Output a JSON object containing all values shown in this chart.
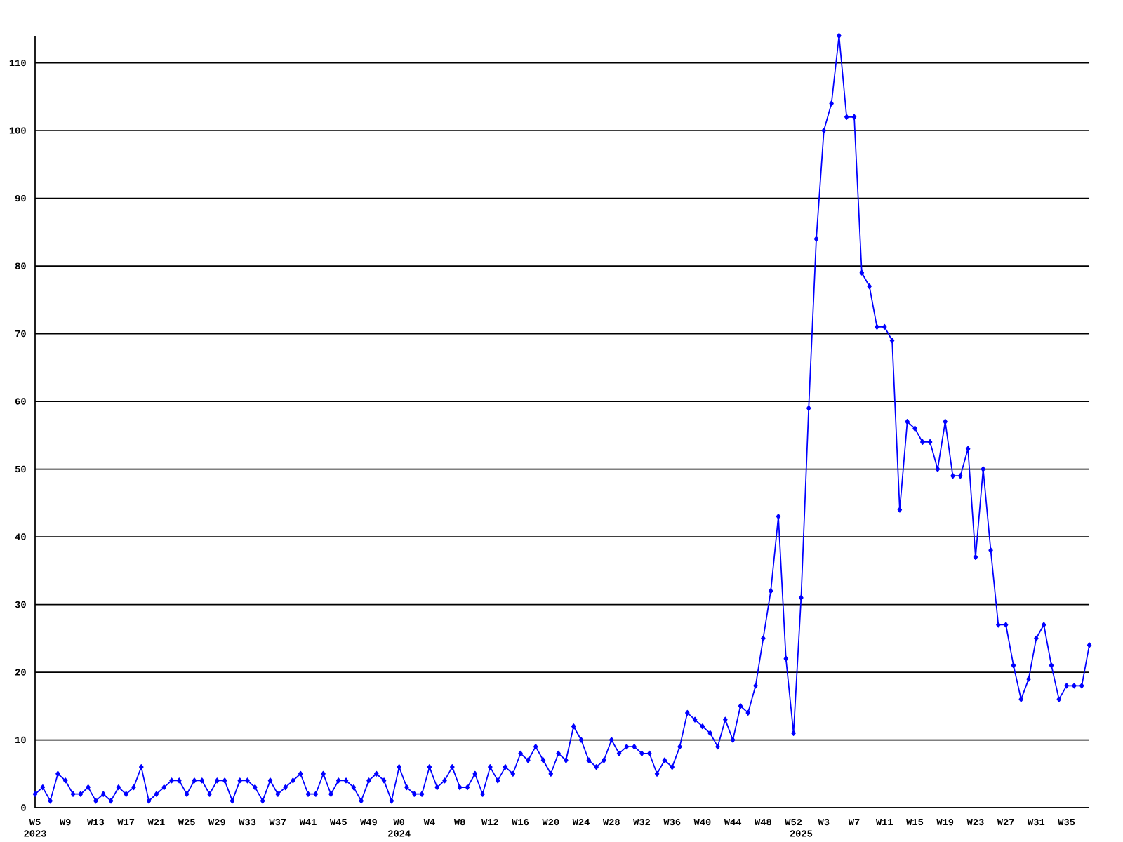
{
  "chart_data": {
    "type": "line",
    "categories": [
      "W5",
      null,
      null,
      null,
      "W9",
      null,
      null,
      null,
      "W13",
      null,
      null,
      null,
      "W17",
      null,
      null,
      null,
      "W21",
      null,
      null,
      null,
      "W25",
      null,
      null,
      null,
      "W29",
      null,
      null,
      null,
      "W33",
      null,
      null,
      null,
      "W37",
      null,
      null,
      null,
      "W41",
      null,
      null,
      null,
      "W45",
      null,
      null,
      null,
      "W49",
      null,
      null,
      null,
      "W0",
      null,
      null,
      null,
      "W4",
      null,
      null,
      null,
      "W8",
      null,
      null,
      null,
      "W12",
      null,
      null,
      null,
      "W16",
      null,
      null,
      null,
      "W20",
      null,
      null,
      null,
      "W24",
      null,
      null,
      null,
      "W28",
      null,
      null,
      null,
      "W32",
      null,
      null,
      null,
      "W36",
      null,
      null,
      null,
      "W40",
      null,
      null,
      null,
      "W44",
      null,
      null,
      null,
      "W48",
      null,
      null,
      null,
      "W52",
      null,
      null,
      null,
      "W3",
      null,
      null,
      null,
      "W7",
      null,
      null,
      null,
      "W11",
      null,
      null,
      null,
      "W15",
      null,
      null,
      null,
      "W19",
      null,
      null,
      null,
      "W23",
      null,
      null,
      null,
      "W27",
      null,
      null,
      null,
      "W31",
      null,
      null,
      null,
      "W35",
      null,
      null,
      null
    ],
    "series": [
      {
        "color": "#0000ff",
        "values": [
          2,
          3,
          1,
          5,
          4,
          2,
          2,
          3,
          1,
          2,
          1,
          3,
          2,
          3,
          6,
          1,
          2,
          3,
          4,
          4,
          2,
          4,
          4,
          2,
          4,
          4,
          1,
          4,
          4,
          3,
          1,
          4,
          2,
          3,
          4,
          5,
          2,
          2,
          5,
          2,
          4,
          4,
          3,
          1,
          4,
          5,
          4,
          1,
          6,
          3,
          2,
          2,
          6,
          3,
          4,
          6,
          3,
          3,
          5,
          2,
          6,
          4,
          6,
          5,
          8,
          7,
          9,
          7,
          5,
          8,
          7,
          12,
          10,
          7,
          6,
          7,
          10,
          8,
          9,
          9,
          8,
          8,
          5,
          7,
          6,
          9,
          14,
          13,
          12,
          11,
          9,
          13,
          10,
          15,
          14,
          18,
          25,
          32,
          43,
          22,
          11,
          31,
          59,
          84,
          100,
          104,
          114,
          102,
          102,
          79,
          77,
          71,
          71,
          69,
          44,
          57,
          56,
          54,
          54,
          50,
          57,
          49,
          49,
          53,
          37,
          50,
          38,
          27,
          27,
          21,
          16,
          19,
          25,
          27,
          21,
          16,
          18,
          18,
          18,
          24
        ]
      }
    ],
    "ylim": [
      0,
      114
    ],
    "yticks": [
      0,
      10,
      20,
      30,
      40,
      50,
      60,
      70,
      80,
      90,
      100,
      110
    ],
    "annotations": [
      "2023",
      "2024",
      "2025"
    ],
    "grid": "y",
    "marker": "diamond",
    "line_style": "solid"
  }
}
